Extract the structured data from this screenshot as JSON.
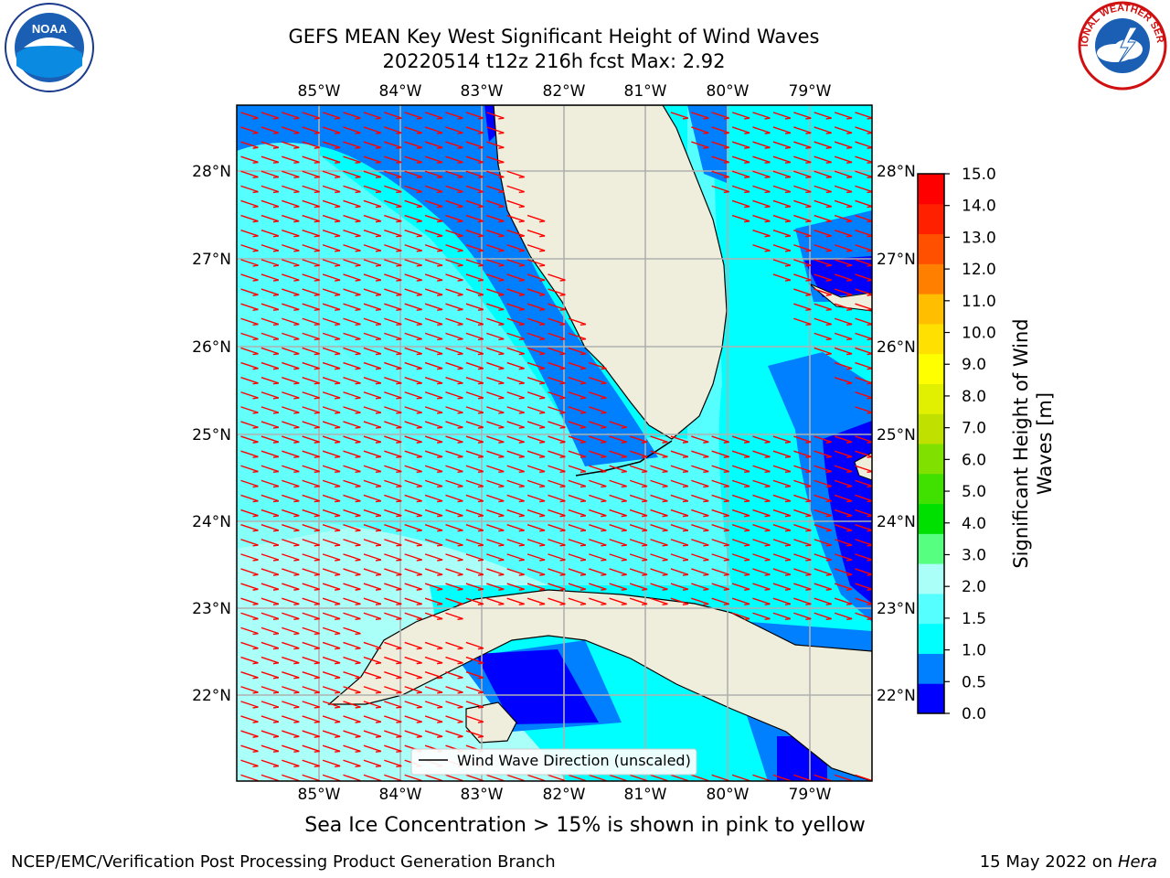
{
  "header": {
    "title_line1": "GEFS MEAN Key West Significant Height of Wind Waves",
    "title_line2": "20220514 t12z 216h fcst   Max: 2.92"
  },
  "map": {
    "lon_labels": [
      "85°W",
      "84°W",
      "83°W",
      "82°W",
      "81°W",
      "80°W",
      "79°W"
    ],
    "lat_labels": [
      "28°N",
      "27°N",
      "26°N",
      "25°N",
      "24°N",
      "23°N",
      "22°N"
    ],
    "legend_label": "Wind Wave Direction (unscaled)",
    "colors": {
      "land": "#efeedc",
      "ocean_low": "#00ffff",
      "ocean_mid": "#56ffff",
      "ocean_high": "#aafff8",
      "deep": "#0080ff",
      "dark": "#0000ff",
      "arrow": "#ff0000",
      "grid": "#b0b0b0"
    }
  },
  "colorbar": {
    "label": "Significant Height of Wind Waves [m]",
    "ticks": [
      "15.0",
      "14.0",
      "13.0",
      "12.0",
      "11.0",
      "10.0",
      "9.0",
      "8.0",
      "7.0",
      "6.0",
      "5.0",
      "4.0",
      "3.0",
      "2.0",
      "1.5",
      "1.0",
      "0.5",
      "0.0"
    ],
    "bands": [
      "#0000ff",
      "#0080ff",
      "#00ffff",
      "#56ffff",
      "#aafff8",
      "#56ff80",
      "#00e000",
      "#40e000",
      "#80e000",
      "#c0e000",
      "#e0f000",
      "#ffff00",
      "#ffe000",
      "#ffbf00",
      "#ff8000",
      "#ff5000",
      "#ff2000",
      "#ff0000"
    ]
  },
  "footer": {
    "subtitle": "Sea Ice Concentration > 15% is shown in pink to yellow",
    "left": "NCEP/EMC/Verification Post Processing Product Generation Branch",
    "right_date": "15 May 2022 on",
    "right_host": "Hera"
  },
  "logos": {
    "noaa": "NOAA",
    "nws": "NATIONAL WEATHER SERVICE"
  }
}
